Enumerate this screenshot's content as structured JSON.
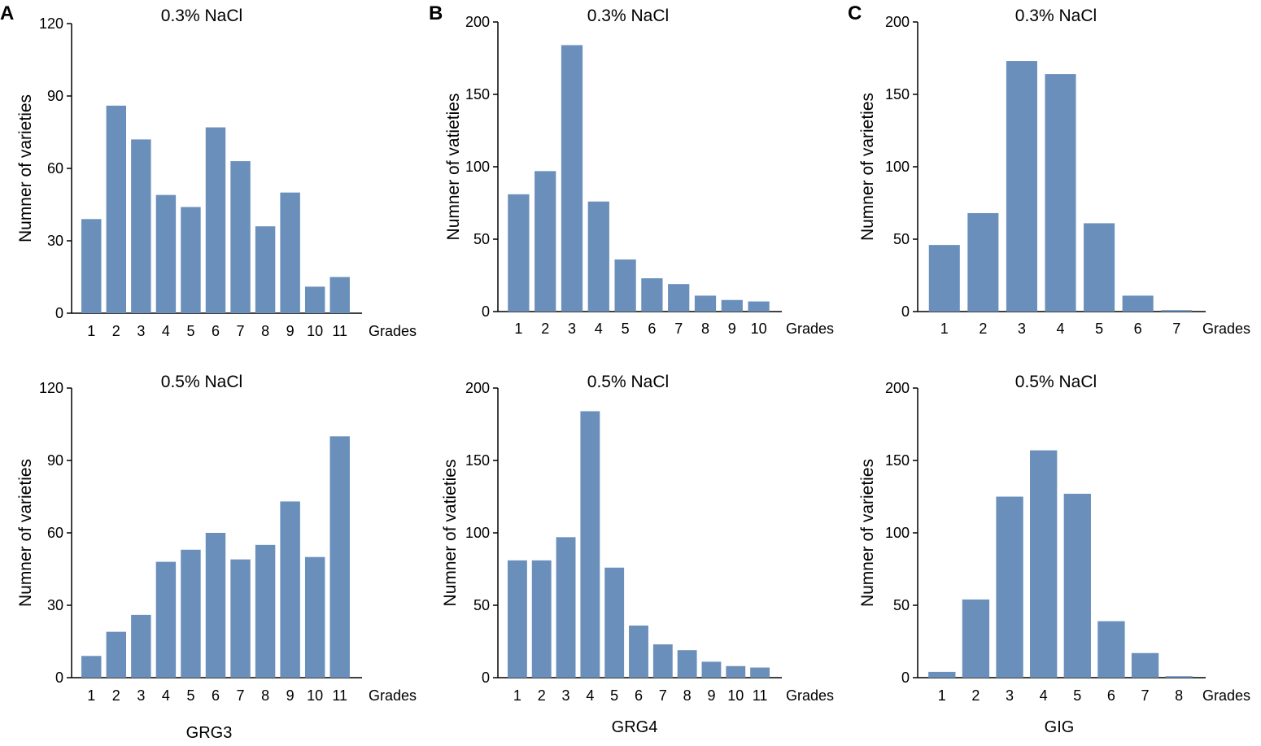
{
  "panel_labels": [
    "A",
    "B",
    "C"
  ],
  "group_labels": [
    "GRG3",
    "GRG4",
    "GIG"
  ],
  "chart_data": [
    {
      "id": "A-top",
      "type": "bar",
      "panel": "A",
      "title": "0.3% NaCl",
      "xlabel": "Grades",
      "ylabel": "Numner of varieties",
      "categories": [
        "1",
        "2",
        "3",
        "4",
        "5",
        "6",
        "7",
        "8",
        "9",
        "10",
        "11"
      ],
      "values": [
        39,
        86,
        72,
        49,
        44,
        77,
        63,
        36,
        50,
        11,
        15
      ],
      "ylim": [
        0,
        120
      ],
      "yticks": [
        0,
        30,
        60,
        90,
        120
      ],
      "grid": false
    },
    {
      "id": "B-top",
      "type": "bar",
      "panel": "B",
      "title": "0.3% NaCl",
      "xlabel": "Grades",
      "ylabel": "Numner of vatieties",
      "categories": [
        "1",
        "2",
        "3",
        "4",
        "5",
        "6",
        "7",
        "8",
        "9",
        "10"
      ],
      "values": [
        81,
        97,
        184,
        76,
        36,
        23,
        19,
        11,
        8,
        7
      ],
      "ylim": [
        0,
        200
      ],
      "yticks": [
        0,
        50,
        100,
        150,
        200
      ],
      "grid": false
    },
    {
      "id": "C-top",
      "type": "bar",
      "panel": "C",
      "title": "0.3% NaCl",
      "xlabel": "Grades",
      "ylabel": "Numner of varieties",
      "categories": [
        "1",
        "2",
        "3",
        "4",
        "5",
        "6",
        "7"
      ],
      "values": [
        46,
        68,
        173,
        164,
        61,
        11,
        1
      ],
      "ylim": [
        0,
        200
      ],
      "yticks": [
        0,
        50,
        100,
        150,
        200
      ],
      "grid": false
    },
    {
      "id": "A-bottom",
      "type": "bar",
      "panel": "A",
      "title": "0.5% NaCl",
      "xlabel": "Grades",
      "ylabel": "Numner of varieties",
      "categories": [
        "1",
        "2",
        "3",
        "4",
        "5",
        "6",
        "7",
        "8",
        "9",
        "10",
        "11"
      ],
      "values": [
        9,
        19,
        26,
        48,
        53,
        60,
        49,
        55,
        73,
        50,
        100
      ],
      "ylim": [
        0,
        120
      ],
      "yticks": [
        0,
        30,
        60,
        90,
        120
      ],
      "grid": false
    },
    {
      "id": "B-bottom",
      "type": "bar",
      "panel": "B",
      "title": "0.5% NaCl",
      "xlabel": "Grades",
      "ylabel": "Numner of vatieties",
      "categories": [
        "1",
        "2",
        "3",
        "4",
        "5",
        "6",
        "7",
        "8",
        "9",
        "10",
        "11"
      ],
      "values": [
        81,
        81,
        97,
        184,
        76,
        36,
        23,
        19,
        11,
        8,
        7
      ],
      "ylim": [
        0,
        200
      ],
      "yticks": [
        0,
        50,
        100,
        150,
        200
      ],
      "grid": false
    },
    {
      "id": "C-bottom",
      "type": "bar",
      "panel": "C",
      "title": "0.5% NaCl",
      "xlabel": "Grades",
      "ylabel": "Numner of varieties",
      "categories": [
        "1",
        "2",
        "3",
        "4",
        "5",
        "6",
        "7",
        "8"
      ],
      "values": [
        4,
        54,
        125,
        157,
        127,
        39,
        17,
        1
      ],
      "ylim": [
        0,
        200
      ],
      "yticks": [
        0,
        50,
        100,
        150,
        200
      ],
      "grid": false
    }
  ],
  "colors": {
    "bar": "#6a8fbb",
    "axis": "#000000",
    "text": "#111111"
  }
}
